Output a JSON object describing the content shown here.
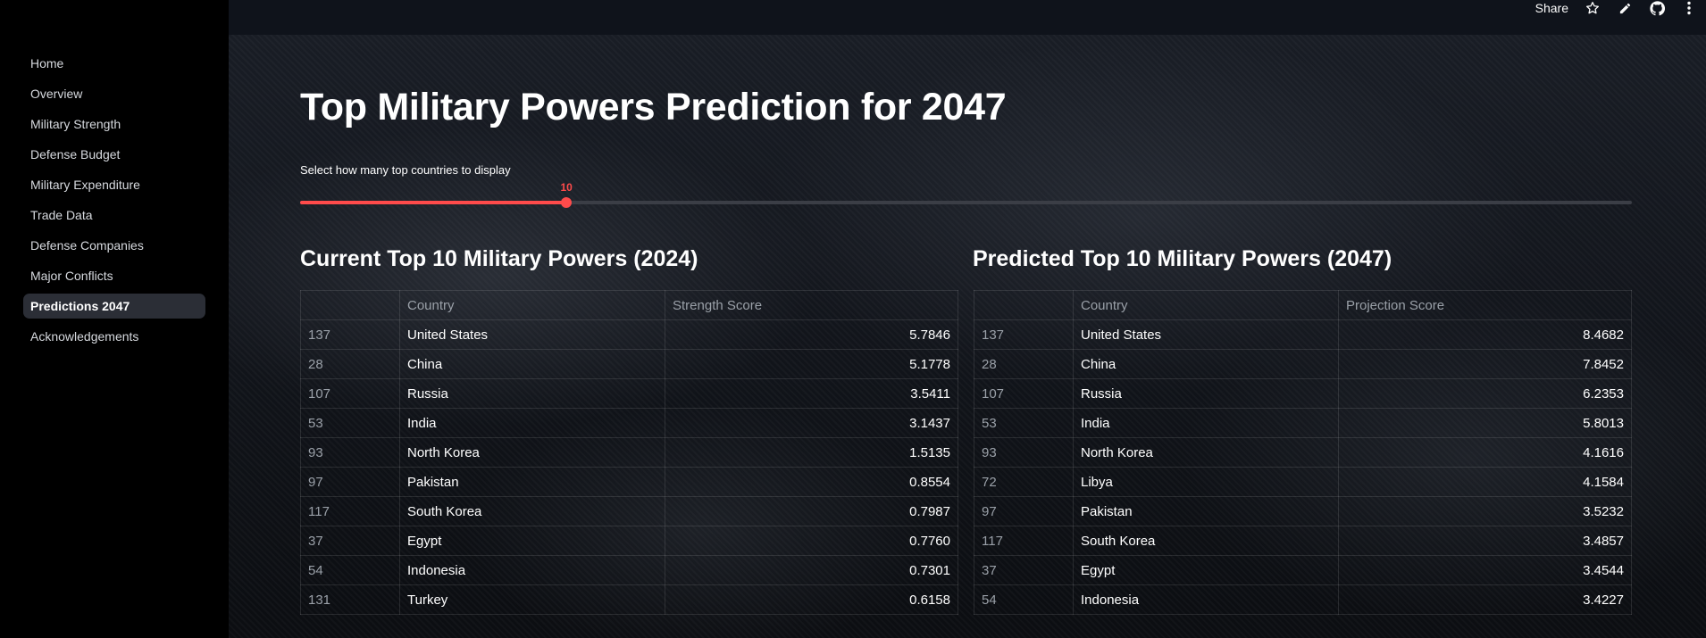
{
  "sidebar": {
    "items": [
      {
        "label": "Home"
      },
      {
        "label": "Overview"
      },
      {
        "label": "Military Strength"
      },
      {
        "label": "Defense Budget"
      },
      {
        "label": "Military Expenditure"
      },
      {
        "label": "Trade Data"
      },
      {
        "label": "Defense Companies"
      },
      {
        "label": "Major Conflicts"
      },
      {
        "label": "Predictions 2047",
        "active": true
      },
      {
        "label": "Acknowledgements"
      }
    ]
  },
  "header": {
    "share_label": "Share",
    "icons": [
      "star-icon",
      "pencil-icon",
      "github-icon",
      "more-vertical-icon"
    ]
  },
  "page": {
    "title": "Top Military Powers Prediction for 2047"
  },
  "slider": {
    "label": "Select how many top countries to display",
    "value": "10",
    "fraction": 0.2
  },
  "colors": {
    "accent": "#ff4b4b",
    "sidebar_bg": "#000000",
    "header_bg": "#0f131b"
  },
  "current": {
    "title": "Current Top 10 Military Powers (2024)",
    "columns": [
      "",
      "Country",
      "Strength Score"
    ],
    "rows": [
      {
        "idx": "137",
        "country": "United States",
        "score": "5.7846"
      },
      {
        "idx": "28",
        "country": "China",
        "score": "5.1778"
      },
      {
        "idx": "107",
        "country": "Russia",
        "score": "3.5411"
      },
      {
        "idx": "53",
        "country": "India",
        "score": "3.1437"
      },
      {
        "idx": "93",
        "country": "North Korea",
        "score": "1.5135"
      },
      {
        "idx": "97",
        "country": "Pakistan",
        "score": "0.8554"
      },
      {
        "idx": "117",
        "country": "South Korea",
        "score": "0.7987"
      },
      {
        "idx": "37",
        "country": "Egypt",
        "score": "0.7760"
      },
      {
        "idx": "54",
        "country": "Indonesia",
        "score": "0.7301"
      },
      {
        "idx": "131",
        "country": "Turkey",
        "score": "0.6158"
      }
    ]
  },
  "predicted": {
    "title": "Predicted Top 10 Military Powers (2047)",
    "columns": [
      "",
      "Country",
      "Projection Score"
    ],
    "rows": [
      {
        "idx": "137",
        "country": "United States",
        "score": "8.4682"
      },
      {
        "idx": "28",
        "country": "China",
        "score": "7.8452"
      },
      {
        "idx": "107",
        "country": "Russia",
        "score": "6.2353"
      },
      {
        "idx": "53",
        "country": "India",
        "score": "5.8013"
      },
      {
        "idx": "93",
        "country": "North Korea",
        "score": "4.1616"
      },
      {
        "idx": "72",
        "country": "Libya",
        "score": "4.1584"
      },
      {
        "idx": "97",
        "country": "Pakistan",
        "score": "3.5232"
      },
      {
        "idx": "117",
        "country": "South Korea",
        "score": "3.4857"
      },
      {
        "idx": "37",
        "country": "Egypt",
        "score": "3.4544"
      },
      {
        "idx": "54",
        "country": "Indonesia",
        "score": "3.4227"
      }
    ]
  }
}
